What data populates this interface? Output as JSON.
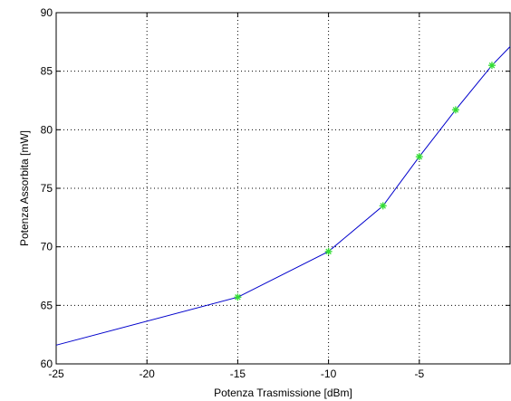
{
  "chart_data": {
    "type": "line",
    "xlabel": "Potenza Trasmissione [dBm]",
    "ylabel": "Potenza Assorbita [mW]",
    "xlim": [
      -25,
      0
    ],
    "ylim": [
      60,
      90
    ],
    "xticks": [
      -25,
      -20,
      -15,
      -10,
      -5
    ],
    "yticks": [
      60,
      65,
      70,
      75,
      80,
      85,
      90
    ],
    "grid": true,
    "series": [
      {
        "x": [
          -25,
          -15,
          -10,
          -7,
          -5,
          -3,
          -1,
          0
        ],
        "y": [
          61.6,
          65.7,
          69.6,
          73.5,
          77.7,
          81.7,
          85.5,
          87.1
        ],
        "color": "#0000cc"
      }
    ],
    "markers": {
      "x": [
        -15,
        -10,
        -7,
        -5,
        -3,
        -1
      ],
      "y": [
        65.7,
        69.6,
        73.5,
        77.7,
        81.7,
        85.5
      ],
      "symbol": "*",
      "color": "#33dd33"
    }
  }
}
